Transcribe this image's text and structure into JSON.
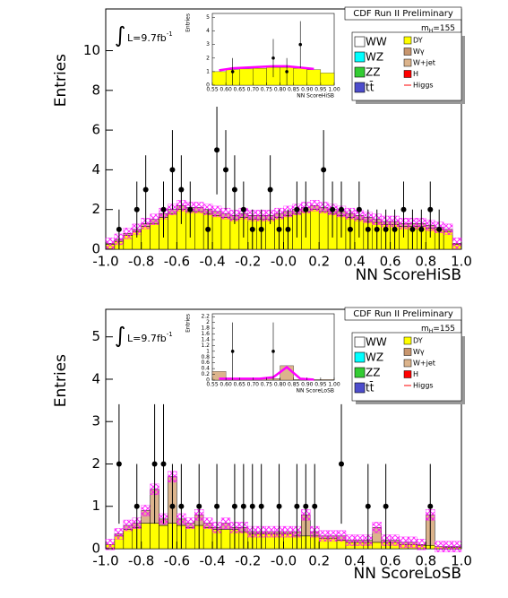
{
  "chart_data": [
    {
      "type": "histogram",
      "stacked": true,
      "title": "CDF Run II Preliminary",
      "mass": {
        "text": "m",
        "sub": "H",
        "rest": "=155"
      },
      "luminosity": {
        "integral": "∫",
        "text": "L=9.7fb",
        "sup": "-1"
      },
      "xlabel": "NN ScoreHiSB",
      "ylabel": "Entries",
      "bins": [
        -1.0,
        -0.95,
        -0.9,
        -0.85,
        -0.8,
        -0.75,
        -0.7,
        -0.65,
        -0.6,
        -0.55,
        -0.5,
        -0.45,
        -0.4,
        -0.35,
        -0.3,
        -0.25,
        -0.2,
        -0.15,
        -0.1,
        -0.05,
        0,
        0.05,
        0.1,
        0.15,
        0.2,
        0.25,
        0.3,
        0.35,
        0.4,
        0.45,
        0.5,
        0.55,
        0.6,
        0.65,
        0.7,
        0.75,
        0.8,
        0.85,
        0.9,
        0.95,
        1.0
      ],
      "series": [
        {
          "name": "DY",
          "color": "#ffff00",
          "values": [
            0.25,
            0.4,
            0.7,
            0.9,
            1.15,
            1.3,
            1.6,
            1.8,
            2.0,
            1.9,
            1.9,
            1.8,
            1.7,
            1.6,
            1.5,
            1.6,
            1.5,
            1.5,
            1.5,
            1.6,
            1.7,
            1.8,
            1.9,
            2.0,
            1.9,
            1.8,
            1.7,
            1.6,
            1.5,
            1.4,
            1.35,
            1.25,
            1.25,
            1.15,
            1.15,
            1.15,
            1.05,
            1.0,
            0.9,
            0.25
          ]
        },
        {
          "name": "W+jet",
          "color": "#dcb48c",
          "values": [
            0.05,
            0.1,
            0.1,
            0.1,
            0.15,
            0.2,
            0.2,
            0.2,
            0.2,
            0.2,
            0.2,
            0.2,
            0.2,
            0.2,
            0.2,
            0.2,
            0.2,
            0.2,
            0.2,
            0.2,
            0.2,
            0.2,
            0.2,
            0.2,
            0.2,
            0.2,
            0.2,
            0.2,
            0.2,
            0.2,
            0.15,
            0.15,
            0.15,
            0.15,
            0.15,
            0.15,
            0.15,
            0.1,
            0.1,
            0.05
          ]
        }
      ],
      "data_points": {
        "color": "#000000",
        "x": [
          -0.925,
          -0.825,
          -0.775,
          -0.675,
          -0.625,
          -0.575,
          -0.525,
          -0.425,
          -0.375,
          -0.325,
          -0.275,
          -0.225,
          -0.175,
          -0.125,
          -0.075,
          -0.025,
          0.025,
          0.075,
          0.125,
          0.225,
          0.275,
          0.325,
          0.375,
          0.425,
          0.475,
          0.525,
          0.575,
          0.625,
          0.675,
          0.725,
          0.775,
          0.825,
          0.875
        ],
        "values": [
          1,
          2,
          3,
          2,
          4,
          3,
          2,
          1,
          5,
          4,
          3,
          2,
          1,
          1,
          3,
          1,
          1,
          2,
          2,
          4,
          2,
          2,
          1,
          2,
          1,
          1,
          1,
          1,
          2,
          1,
          1,
          2,
          1
        ],
        "errors": [
          1,
          1.41,
          1.73,
          1.41,
          2,
          1.73,
          1.41,
          1,
          2.24,
          2,
          1.73,
          1.41,
          1,
          1,
          1.73,
          1,
          1,
          1.41,
          1.41,
          2,
          1.41,
          1.41,
          1,
          1.41,
          1,
          1,
          1,
          1,
          1.41,
          1,
          1,
          1.41,
          1
        ]
      },
      "uncertainty_color": "#ff00ff",
      "legend": [
        {
          "name": "WW",
          "color": "#ffffff"
        },
        {
          "name": "WZ",
          "color": "#00ffff"
        },
        {
          "name": "ZZ",
          "color": "#33cc33"
        },
        {
          "name": "tt̄",
          "color": "#4d4dcc"
        },
        {
          "name": "Wγ",
          "color": "#c8966e"
        },
        {
          "name": "H",
          "color": "#ff0000"
        },
        {
          "name": "Higgs",
          "color": "#ff0000",
          "marker": "line"
        }
      ],
      "xlim": [
        -1.0,
        1.0
      ],
      "xticks": [
        {
          "value": -1.0,
          "label": "-1.0"
        },
        -0.8,
        -0.6,
        -0.4,
        -0.2,
        {
          "value": 0,
          "label": "-0.0"
        },
        0.2,
        0.4,
        0.6,
        0.8,
        {
          "value": 1.0,
          "label": "1.0"
        }
      ],
      "ylim": [
        0,
        12.1
      ],
      "yticks": [
        0,
        2,
        4,
        6,
        8,
        10
      ]
    },
    {
      "type": "histogram",
      "stacked": true,
      "xlabel": "NN ScoreHiSB",
      "ylabel": "Entries",
      "bins": [
        0.55,
        0.6,
        0.65,
        0.7,
        0.75,
        0.8,
        0.85,
        0.9,
        0.95,
        1.0
      ],
      "series": [
        {
          "color": "#ffff00",
          "values": [
            1.0,
            1.15,
            1.2,
            1.25,
            1.3,
            1.3,
            1.25,
            1.15,
            0.9
          ]
        }
      ],
      "signal": {
        "color": "#ff00ff",
        "values": [
          1.1,
          1.25,
          1.3,
          1.35,
          1.4,
          1.4,
          1.3,
          1.2,
          null
        ]
      },
      "data_points": {
        "color": "#000000",
        "x": [
          0.625,
          0.775,
          0.825,
          0.875
        ],
        "values": [
          1,
          2,
          1,
          3
        ],
        "errors": [
          1,
          1.41,
          1,
          1.73
        ]
      },
      "xlim": [
        0.55,
        1.0
      ],
      "xticks": [
        0.55,
        {
          "value": 0.6,
          "label": "0.60"
        },
        0.65,
        {
          "value": 0.7,
          "label": "0.70"
        },
        0.75,
        {
          "value": 0.8,
          "label": "0.80"
        },
        0.85,
        {
          "value": 0.9,
          "label": "0.90"
        },
        0.95,
        {
          "value": 1.0,
          "label": "1.00"
        }
      ],
      "ylim": [
        0,
        5.3
      ],
      "yticks": [
        0,
        1,
        2,
        3,
        4,
        5
      ]
    },
    {
      "type": "histogram",
      "stacked": true,
      "title": "CDF Run II Preliminary",
      "mass": {
        "text": "m",
        "sub": "H",
        "rest": "=155"
      },
      "luminosity": {
        "integral": "∫",
        "text": "L=9.7fb",
        "sup": "-1"
      },
      "xlabel": "NN ScoreLoSB",
      "ylabel": "Entries",
      "bins": [
        -1.0,
        -0.95,
        -0.9,
        -0.85,
        -0.8,
        -0.75,
        -0.7,
        -0.65,
        -0.6,
        -0.55,
        -0.5,
        -0.45,
        -0.4,
        -0.35,
        -0.3,
        -0.25,
        -0.2,
        -0.15,
        -0.1,
        -0.05,
        0,
        0.05,
        0.1,
        0.15,
        0.2,
        0.25,
        0.3,
        0.35,
        0.4,
        0.45,
        0.5,
        0.55,
        0.6,
        0.65,
        0.7,
        0.75,
        0.8,
        0.85,
        0.9,
        0.95,
        1.0
      ],
      "series": [
        {
          "name": "DY",
          "color": "#ffff00",
          "values": [
            0.1,
            0.3,
            0.45,
            0.5,
            0.6,
            0.6,
            0.55,
            0.6,
            0.55,
            0.5,
            0.55,
            0.5,
            0.45,
            0.45,
            0.45,
            0.4,
            0.35,
            0.35,
            0.35,
            0.35,
            0.35,
            0.3,
            0.3,
            0.3,
            0.25,
            0.25,
            0.2,
            0.15,
            0.15,
            0.15,
            0.15,
            0.15,
            0.15,
            0.1,
            0.1,
            0.08,
            0.08,
            0.05,
            0.03,
            0.03
          ]
        },
        {
          "name": "W+jet",
          "color": "#dcb48c",
          "values": [
            0,
            0.05,
            0.1,
            0.1,
            0.3,
            0.8,
            0.15,
            1.1,
            0.15,
            0.1,
            0.25,
            0.1,
            0.05,
            0.15,
            0.05,
            0.1,
            0.05,
            0.05,
            0.05,
            0.05,
            0.05,
            0.1,
            0.5,
            0.1,
            0.05,
            0.05,
            0.1,
            0.05,
            0.05,
            0.05,
            0.35,
            0.05,
            0.05,
            0.05,
            0.05,
            0.02,
            0.72,
            0,
            0.02,
            0.02
          ]
        }
      ],
      "data_points": {
        "color": "#000000",
        "x": [
          -0.925,
          -0.825,
          -0.725,
          -0.675,
          -0.625,
          -0.575,
          -0.475,
          -0.375,
          -0.275,
          -0.225,
          -0.175,
          -0.125,
          -0.025,
          0.075,
          0.125,
          0.175,
          0.325,
          0.475,
          0.575,
          0.825
        ],
        "values": [
          2,
          1,
          2,
          2,
          1,
          1,
          1,
          1,
          1,
          1,
          1,
          1,
          1,
          1,
          1,
          1,
          2,
          1,
          1,
          1
        ],
        "errors": [
          1.41,
          1,
          1.41,
          1.41,
          1,
          1,
          1,
          1,
          1,
          1,
          1,
          1,
          1,
          1,
          1,
          1,
          1.41,
          1,
          1,
          1
        ]
      },
      "uncertainty_color": "#ff00ff",
      "legend": [
        {
          "name": "WW",
          "color": "#ffffff"
        },
        {
          "name": "WZ",
          "color": "#00ffff"
        },
        {
          "name": "ZZ",
          "color": "#33cc33"
        },
        {
          "name": "tt̄",
          "color": "#4d4dcc"
        },
        {
          "name": "Wγ",
          "color": "#c8966e"
        },
        {
          "name": "H",
          "color": "#ff0000"
        },
        {
          "name": "Higgs",
          "color": "#ff0000",
          "marker": "line"
        }
      ],
      "xlim": [
        -1.0,
        1.0
      ],
      "xticks": [
        {
          "value": -1.0,
          "label": "-1.0"
        },
        -0.8,
        -0.6,
        -0.4,
        -0.2,
        {
          "value": 0,
          "label": "-0.0"
        },
        0.2,
        0.4,
        0.6,
        0.8,
        {
          "value": 1.0,
          "label": "1.0"
        }
      ],
      "ylim": [
        0,
        5.65
      ],
      "yticks": [
        0,
        1,
        2,
        3,
        4,
        5
      ]
    },
    {
      "type": "histogram",
      "stacked": true,
      "xlabel": "NN ScoreLoSB",
      "ylabel": "Entries",
      "bins": [
        0.55,
        0.6,
        0.65,
        0.7,
        0.75,
        0.8,
        0.85,
        0.9,
        0.95,
        1.0
      ],
      "series": [
        {
          "color": "#dcb48c",
          "values": [
            0.3,
            0.05,
            0.05,
            0.05,
            0.05,
            0.5,
            0.02,
            0.02,
            0.02
          ]
        }
      ],
      "signal": {
        "color": "#ff00ff",
        "values": [
          0.05,
          0.05,
          0.05,
          0.05,
          0.1,
          0.45,
          0.05,
          0.02,
          null
        ]
      },
      "data_points": {
        "color": "#000000",
        "x": [
          0.625,
          0.775
        ],
        "values": [
          1,
          1
        ],
        "errors": [
          1,
          1
        ]
      },
      "xlim": [
        0.55,
        1.0
      ],
      "xticks": [
        0.55,
        {
          "value": 0.6,
          "label": "0.60"
        },
        0.65,
        {
          "value": 0.7,
          "label": "0.70"
        },
        0.75,
        {
          "value": 0.8,
          "label": "0.80"
        },
        0.85,
        {
          "value": 0.9,
          "label": "0.90"
        },
        0.95,
        {
          "value": 1.0,
          "label": "1.00"
        }
      ],
      "ylim": [
        0,
        2.3
      ],
      "yticks": [
        0,
        0.2,
        0.4,
        0.6,
        0.8,
        1,
        1.2,
        1.4,
        1.6,
        1.8,
        2,
        2.2
      ]
    }
  ]
}
